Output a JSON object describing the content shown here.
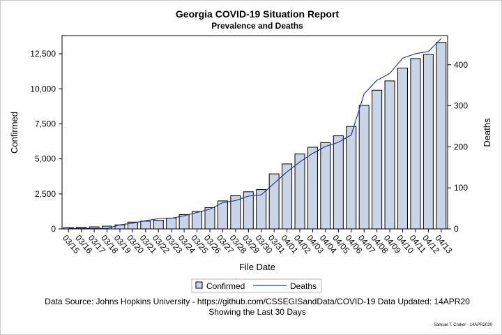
{
  "chart_data": {
    "type": "bar",
    "title": "Georgia COVID-19 Situation Report",
    "subtitle": "Prevalence and Deaths",
    "xlabel": "File Date",
    "ylabel": "Confirmed",
    "y2label": "Deaths",
    "categories": [
      "03/15",
      "03/16",
      "03/17",
      "03/18",
      "03/19",
      "03/20",
      "03/21",
      "03/22",
      "03/23",
      "03/24",
      "03/25",
      "03/26",
      "03/27",
      "03/28",
      "03/29",
      "03/30",
      "03/31",
      "04/01",
      "04/02",
      "04/03",
      "04/04",
      "04/05",
      "04/06",
      "04/07",
      "04/08",
      "04/09",
      "04/10",
      "04/11",
      "04/12",
      "04/13"
    ],
    "series": [
      {
        "name": "Confirmed",
        "type": "bar",
        "axis": "left",
        "color": "#c9d4e6",
        "values": [
          99,
          121,
          146,
          197,
          287,
          485,
          555,
          620,
          772,
          1026,
          1247,
          1525,
          2000,
          2366,
          2651,
          2809,
          3929,
          4638,
          5348,
          5831,
          6160,
          6647,
          7314,
          8818,
          9901,
          10566,
          11483,
          12159,
          12452,
          13315
        ]
      },
      {
        "name": "Deaths",
        "type": "line",
        "axis": "right",
        "color": "#1f3f9e",
        "values": [
          1,
          1,
          1,
          1,
          10,
          14,
          20,
          25,
          26,
          32,
          40,
          48,
          64,
          69,
          80,
          83,
          111,
          139,
          163,
          184,
          201,
          211,
          229,
          329,
          362,
          379,
          416,
          427,
          432,
          464
        ]
      }
    ],
    "ylim": [
      0,
      13800
    ],
    "y_ticks": [
      0,
      2500,
      5000,
      7500,
      10000,
      12500
    ],
    "y_tick_labels": [
      "0",
      "2,500",
      "5,000",
      "7,500",
      "10,000",
      "12,500"
    ],
    "y2lim": [
      0,
      471
    ],
    "y2_ticks": [
      0,
      100,
      200,
      300,
      400
    ],
    "y2_tick_labels": [
      "0",
      "100",
      "200",
      "300",
      "400"
    ],
    "grid": false,
    "legend_position": "bottom-center",
    "legend_entries": [
      "Confirmed",
      "Deaths"
    ]
  },
  "footer": {
    "source": "Data Source: Johns Hopkins University - https://github.com/CSSEGISandData/COVID-19  Data Updated: 14APR20",
    "period": "Showing the Last 30 Days",
    "credit": "Samuel T. Croker - 14APR2020"
  }
}
